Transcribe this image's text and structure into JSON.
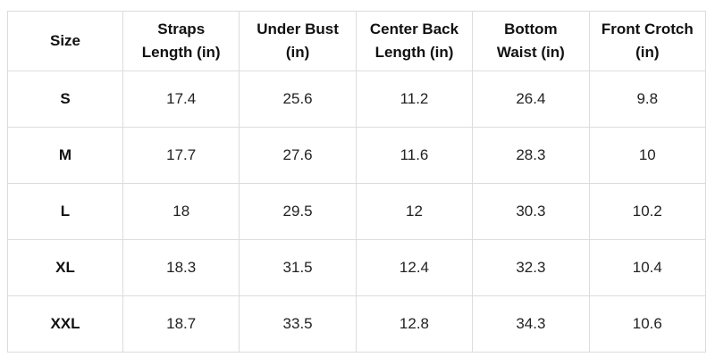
{
  "table": {
    "header": [
      "Size",
      "Straps Length (in)",
      "Under Bust (in)",
      "Center Back Length (in)",
      "Bottom Waist (in)",
      "Front Crotch (in)"
    ],
    "rows": [
      [
        "S",
        17.4,
        25.6,
        11.2,
        26.4,
        9.8
      ],
      [
        "M",
        17.7,
        27.6,
        11.6,
        28.3,
        10
      ],
      [
        "L",
        18,
        29.5,
        12,
        30.3,
        10.2
      ],
      [
        "XL",
        18.3,
        31.5,
        12.4,
        32.3,
        10.4
      ],
      [
        "XXL",
        18.7,
        33.5,
        12.8,
        34.3,
        10.6
      ]
    ]
  }
}
